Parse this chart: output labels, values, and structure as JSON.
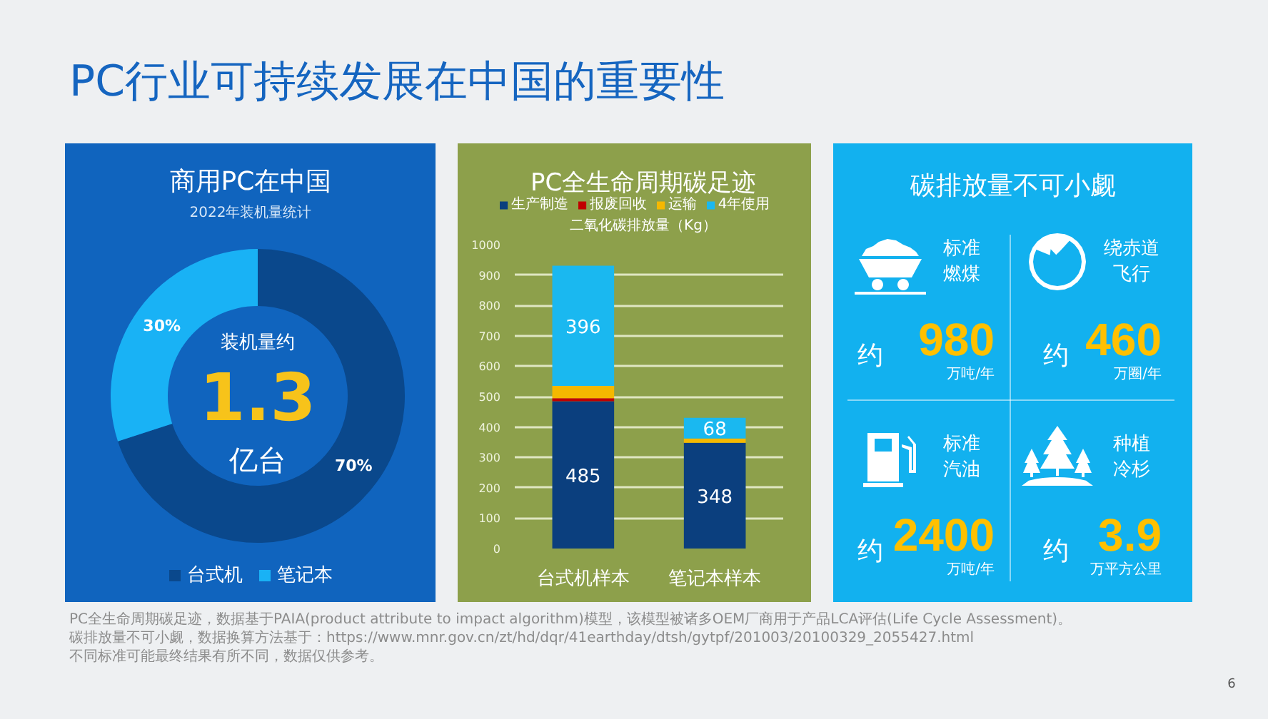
{
  "chart_data": [
    {
      "type": "other",
      "title": "PC行业可持续发展在中国的重要性",
      "annotations": [
        "PC全生命周期碳足迹，数据基于PAIA(product attribute to impact algorithm)模型，该模型被诸多OEM厂商用于产品LCA评估(Life Cycle Assessment)。",
        "碳排放量不可小觑，数据换算方法基于：https://www.mnr.gov.cn/zt/hd/dqr/41earthday/dtsh/gytpf/201003/20100329_2055427.html",
        "不同标准可能最终结果有所不同，数据仅供参考。",
        "6"
      ]
    },
    {
      "type": "donut",
      "title": "商用PC在中国",
      "subtitle": "2022年装机量统计",
      "categories": [
        "台式机",
        "笔记本"
      ],
      "values": [
        70,
        30
      ],
      "colors": [
        "#0a488c",
        "#19b2f5"
      ],
      "value_labels": [
        "70%",
        "30%"
      ],
      "legend": "bottom",
      "annotations": [
        "装机量约",
        "1.3",
        "亿台"
      ]
    },
    {
      "type": "bar",
      "stacked": true,
      "title": "PC全生命周期碳足迹",
      "ylabel": "二氧化碳排放量（Kg）",
      "categories": [
        "台式机样本",
        "笔记本样本"
      ],
      "series": [
        {
          "name": "生产制造",
          "color": "#0b3f7e",
          "values": [
            485,
            348
          ],
          "value_labels": [
            "485",
            "348"
          ]
        },
        {
          "name": "报废回收",
          "color": "#c00000",
          "values": [
            10,
            null
          ]
        },
        {
          "name": "运输",
          "color": "#f5b800",
          "values": [
            40,
            14
          ]
        },
        {
          "name": "4年使用",
          "color": "#1ab8f0",
          "values": [
            396,
            68
          ],
          "value_labels": [
            "396",
            "68"
          ]
        }
      ],
      "ylim": [
        0,
        1000
      ],
      "yticks": [
        0,
        100,
        200,
        300,
        400,
        500,
        600,
        700,
        800,
        900,
        1000
      ],
      "grid": "y",
      "legend": "top"
    },
    {
      "type": "other",
      "title": "碳排放量不可小觑",
      "categories": [
        "标准燃煤",
        "绕赤道飞行",
        "标准汽油",
        "种植冷杉"
      ],
      "values": [
        980,
        460,
        2400,
        3.9
      ],
      "data_labels": true,
      "annotations": [
        "约",
        "万吨/年",
        "约",
        "万圈/年",
        "约",
        "万吨/年",
        "约",
        "万平方公里"
      ]
    }
  ]
}
